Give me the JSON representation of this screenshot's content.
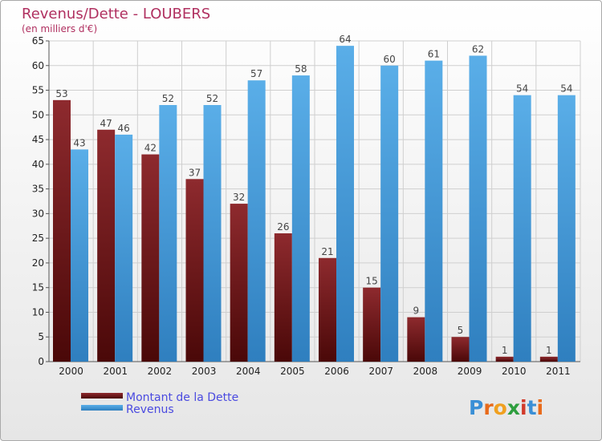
{
  "chart_data": {
    "type": "bar",
    "title": "Revenus/Dette - LOUBERS",
    "subtitle": "(en milliers d'€)",
    "categories": [
      "2000",
      "2001",
      "2002",
      "2003",
      "2004",
      "2005",
      "2006",
      "2007",
      "2008",
      "2009",
      "2010",
      "2011"
    ],
    "series": [
      {
        "name": "Montant de la Dette",
        "values": [
          53,
          47,
          42,
          37,
          32,
          26,
          21,
          15,
          9,
          5,
          1,
          1
        ],
        "color": "#7a1a1a"
      },
      {
        "name": "Revenus",
        "values": [
          43,
          46,
          52,
          52,
          57,
          58,
          64,
          60,
          61,
          62,
          54,
          54
        ],
        "color": "#4aa3e4"
      }
    ],
    "ylim": [
      0,
      65
    ],
    "yticks": [
      0,
      5,
      10,
      15,
      20,
      25,
      30,
      35,
      40,
      45,
      50,
      55,
      60,
      65
    ],
    "grid": true,
    "legend_position": "bottom-left"
  },
  "logo": {
    "text": "Proxiti"
  }
}
